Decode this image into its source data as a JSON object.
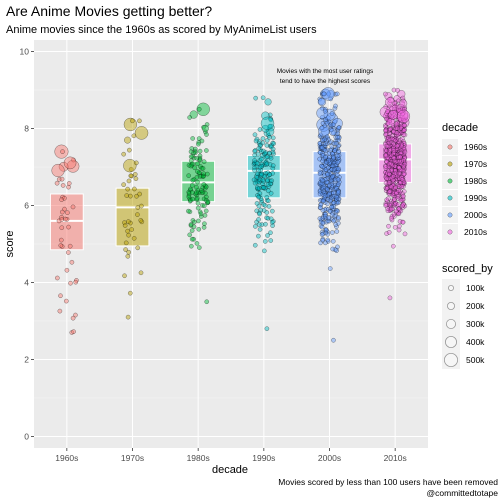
{
  "chart_data": {
    "type": "scatter",
    "title": "Are Anime Movies getting better?",
    "subtitle": "Anime movies since the 1960s as scored by MyAnimeList users",
    "xlabel": "decade",
    "ylabel": "score",
    "ylim": [
      -0.3,
      10.3
    ],
    "y_ticks": [
      0,
      2,
      4,
      6,
      8,
      10
    ],
    "categories": [
      "1960s",
      "1970s",
      "1980s",
      "1990s",
      "2000s",
      "2010s"
    ],
    "colors": [
      "#F8766D",
      "#B79F00",
      "#00BA38",
      "#00BFC4",
      "#619CFF",
      "#F564E3"
    ],
    "boxes": [
      {
        "decade": "1960s",
        "q1": 4.85,
        "median": 5.6,
        "q3": 6.3
      },
      {
        "decade": "1970s",
        "q1": 4.95,
        "median": 5.95,
        "q3": 6.45
      },
      {
        "decade": "1980s",
        "q1": 6.1,
        "median": 6.6,
        "q3": 7.15
      },
      {
        "decade": "1990s",
        "q1": 6.2,
        "median": 6.9,
        "q3": 7.3
      },
      {
        "decade": "2000s",
        "q1": 6.2,
        "median": 6.85,
        "q3": 7.4
      },
      {
        "decade": "2010s",
        "q1": 6.6,
        "median": 7.2,
        "q3": 7.6
      }
    ],
    "point_counts": [
      45,
      45,
      120,
      170,
      400,
      650
    ],
    "score_range": [
      [
        2.7,
        7.4
      ],
      [
        3.1,
        8.2
      ],
      [
        3.5,
        8.5
      ],
      [
        2.8,
        8.8
      ],
      [
        2.5,
        8.9
      ],
      [
        3.6,
        9.0
      ]
    ],
    "legend": {
      "decade_title": "decade",
      "decade_entries": [
        "1960s",
        "1970s",
        "1980s",
        "1990s",
        "2000s",
        "2010s"
      ],
      "size_title": "scored_by",
      "size_entries": [
        "100k",
        "200k",
        "300k",
        "400k",
        "500k"
      ]
    },
    "annotation": [
      "Movies with the most user ratings",
      "tend to have the highest scores"
    ],
    "caption": [
      "Movies scored by less than 100 users have been removed",
      "@committedtotape"
    ],
    "grid": true,
    "theme": {
      "panel_bg": "#EBEBEB",
      "grid_color": "#FFFFFF"
    }
  }
}
